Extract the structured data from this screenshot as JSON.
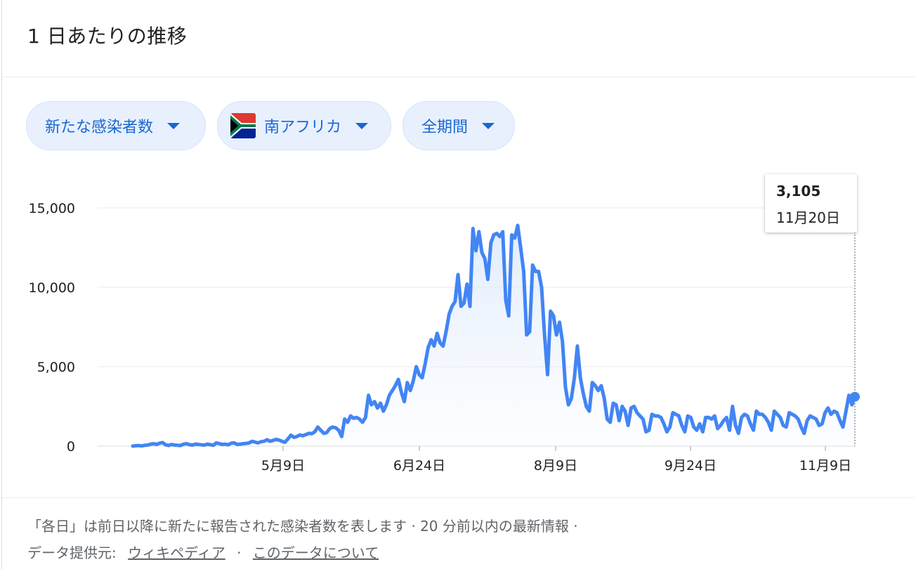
{
  "header": {
    "title": "1 日あたりの推移"
  },
  "filters": {
    "metric": "新たな感染者数",
    "country": "南アフリカ",
    "period": "全期間"
  },
  "tooltip": {
    "value": "3,105",
    "date": "11月20日"
  },
  "footer": {
    "line1": "「各日」は前日以降に新たに報告された感染者数を表します · 20 分前以内の最新情報 ·",
    "source_label": "データ提供元:",
    "source_link": "ウィキペディア",
    "about_link": "このデータについて",
    "separator": "·"
  },
  "colors": {
    "line": "#4285f4",
    "chip_text": "#1967d2",
    "chip_bg": "#e8f0fe"
  },
  "chart_data": {
    "type": "area",
    "y_ticks": [
      "15,000",
      "10,000",
      "5,000",
      "0"
    ],
    "x_ticks": [
      "5月9日",
      "6月24日",
      "8月9日",
      "9月24日",
      "11月9日"
    ],
    "ylim": [
      0,
      15000
    ],
    "grid": true,
    "series": [
      {
        "values": [
          0,
          20,
          30,
          10,
          50,
          60,
          120,
          150,
          100,
          180,
          220,
          80,
          40,
          100,
          60,
          50,
          30,
          120,
          150,
          90,
          60,
          120,
          100,
          80,
          60,
          120,
          90,
          50,
          200,
          150,
          100,
          120,
          80,
          180,
          200,
          100,
          120,
          150,
          170,
          200,
          300,
          250,
          200,
          280,
          300,
          400,
          300,
          350,
          420,
          380,
          300,
          240,
          450,
          680,
          550,
          600,
          700,
          650,
          720,
          800,
          780,
          900,
          1200,
          1000,
          800,
          850,
          1100,
          1200,
          1150,
          1000,
          600,
          1700,
          1500,
          1900,
          1750,
          1800,
          1700,
          1500,
          1800,
          3200,
          2600,
          2800,
          2400,
          2700,
          2200,
          2600,
          3200,
          3500,
          3800,
          4200,
          3400,
          2800,
          4000,
          3500,
          4100,
          5000,
          4500,
          4300,
          5200,
          6200,
          6700,
          6300,
          7100,
          6500,
          6300,
          7200,
          8300,
          8800,
          9100,
          10800,
          8800,
          9000,
          10200,
          8800,
          13700,
          12300,
          13500,
          12200,
          11800,
          10500,
          12800,
          13300,
          13400,
          13200,
          13500,
          9200,
          8200,
          13300,
          13100,
          13900,
          12500,
          11000,
          7000,
          7200,
          11400,
          11000,
          11000,
          10000,
          7000,
          4500,
          8500,
          8200,
          7000,
          7800,
          6600,
          3700,
          2600,
          3000,
          4300,
          6300,
          4300,
          3300,
          2500,
          2200,
          4000,
          3800,
          3500,
          3800,
          3000,
          1700,
          1500,
          2700,
          2600,
          1600,
          2500,
          2200,
          1300,
          2400,
          2500,
          2100,
          1900,
          1700,
          900,
          1000,
          2000,
          1900,
          1900,
          1800,
          1400,
          900,
          1200,
          2100,
          2000,
          1900,
          1300,
          900,
          1900,
          1800,
          1200,
          1000,
          1400,
          900,
          1800,
          1800,
          1700,
          1900,
          1100,
          1300,
          1600,
          1800,
          1000,
          2500,
          1300,
          800,
          1800,
          2000,
          1900,
          1400,
          1000,
          2200,
          2000,
          2000,
          1800,
          1500,
          1000,
          2200,
          2000,
          1800,
          1300,
          1200,
          2100,
          2000,
          1900,
          1700,
          1200,
          800,
          1600,
          1900,
          1800,
          1700,
          1300,
          1400,
          2100,
          2400,
          2000,
          2200,
          2100,
          1600,
          1200,
          2200,
          3200,
          2600,
          3105
        ]
      }
    ]
  }
}
